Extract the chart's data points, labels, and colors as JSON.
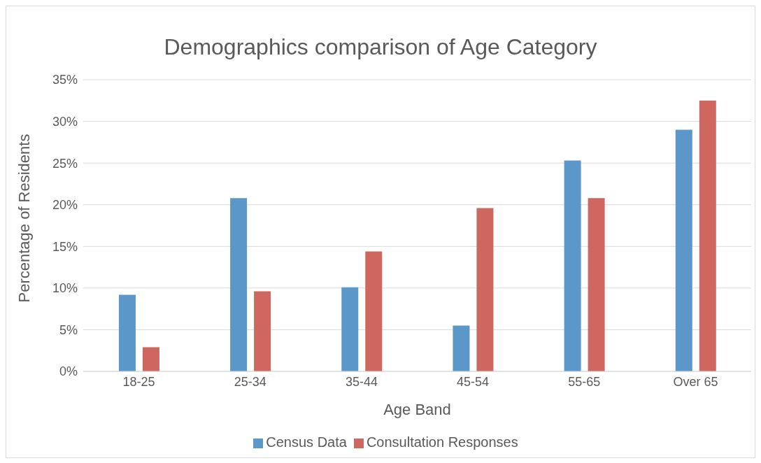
{
  "chart_data": {
    "type": "bar",
    "title": "Demographics comparison of Age Category",
    "xlabel": "Age Band",
    "ylabel": "Percentage of Residents",
    "categories": [
      "18-25",
      "25-34",
      "35-44",
      "45-54",
      "55-65",
      "Over 65"
    ],
    "series": [
      {
        "name": "Census Data",
        "color": "#5b97c8",
        "values": [
          9.2,
          20.8,
          10.1,
          5.5,
          25.3,
          29.0
        ]
      },
      {
        "name": "Consultation Responses",
        "color": "#cd6760",
        "values": [
          2.9,
          9.6,
          14.4,
          19.6,
          20.8,
          32.5
        ]
      }
    ],
    "ylim": [
      0,
      35
    ],
    "yticks": [
      {
        "value": 0,
        "label": "0%"
      },
      {
        "value": 5,
        "label": "5%"
      },
      {
        "value": 10,
        "label": "10%"
      },
      {
        "value": 15,
        "label": "15%"
      },
      {
        "value": 20,
        "label": "20%"
      },
      {
        "value": 25,
        "label": "25%"
      },
      {
        "value": 30,
        "label": "30%"
      },
      {
        "value": 35,
        "label": "35%"
      }
    ],
    "grid": "y",
    "legend": "bottom"
  }
}
